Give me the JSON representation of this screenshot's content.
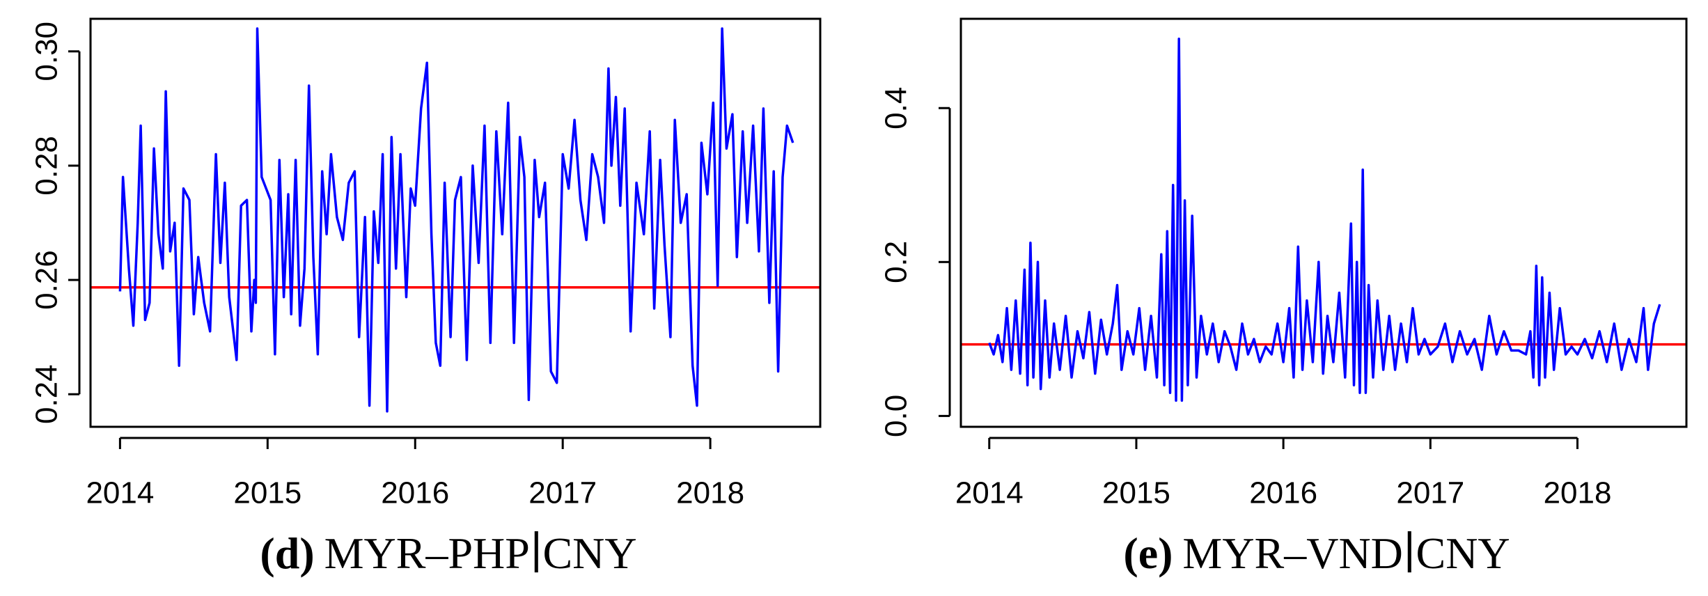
{
  "chart_data": [
    {
      "type": "line",
      "caption_label": "(d)",
      "caption_text": "MYR–PHP∣CNY",
      "xlim": [
        2013.8,
        2018.745
      ],
      "xticks": [
        2014,
        2015,
        2016,
        2017,
        2018
      ],
      "ylim": [
        0.2343,
        0.3057
      ],
      "yticks": [
        0.24,
        0.26,
        0.28,
        {
          "value": 0.3,
          "label": "0.30"
        }
      ],
      "hline": {
        "value": 0.2587,
        "color": "#ff0000"
      },
      "series": [
        {
          "color": "#0000ff",
          "x": [
            2014.0,
            2014.02,
            2014.06,
            2014.09,
            2014.12,
            2014.14,
            2014.17,
            2014.2,
            2014.23,
            2014.26,
            2014.29,
            2014.31,
            2014.34,
            2014.37,
            2014.4,
            2014.43,
            2014.47,
            2014.5,
            2014.53,
            2014.57,
            2014.61,
            2014.65,
            2014.68,
            2014.71,
            2014.74,
            2014.79,
            2014.82,
            2014.86,
            2014.89,
            2014.91,
            2014.92,
            2014.93,
            2014.96,
            2015.02,
            2015.05,
            2015.08,
            2015.11,
            2015.14,
            2015.16,
            2015.19,
            2015.22,
            2015.25,
            2015.28,
            2015.31,
            2015.34,
            2015.37,
            2015.4,
            2015.43,
            2015.47,
            2015.51,
            2015.55,
            2015.59,
            2015.62,
            2015.66,
            2015.69,
            2015.72,
            2015.75,
            2015.78,
            2015.81,
            2015.84,
            2015.87,
            2015.9,
            2015.94,
            2015.97,
            2016.0,
            2016.04,
            2016.08,
            2016.11,
            2016.14,
            2016.17,
            2016.2,
            2016.24,
            2016.27,
            2016.31,
            2016.35,
            2016.39,
            2016.43,
            2016.47,
            2016.51,
            2016.55,
            2016.59,
            2016.63,
            2016.67,
            2016.71,
            2016.74,
            2016.77,
            2016.81,
            2016.84,
            2016.88,
            2016.92,
            2016.96,
            2017.0,
            2017.04,
            2017.08,
            2017.12,
            2017.16,
            2017.2,
            2017.24,
            2017.28,
            2017.31,
            2017.33,
            2017.36,
            2017.39,
            2017.42,
            2017.46,
            2017.5,
            2017.55,
            2017.59,
            2017.62,
            2017.66,
            2017.69,
            2017.73,
            2017.76,
            2017.8,
            2017.84,
            2017.88,
            2017.91,
            2017.94,
            2017.98,
            2018.02,
            2018.05,
            2018.08,
            2018.11,
            2018.15,
            2018.18,
            2018.22,
            2018.25,
            2018.29,
            2018.33,
            2018.36,
            2018.4,
            2018.43,
            2018.46,
            2018.49,
            2018.52,
            2018.56
          ],
          "values": [
            0.258,
            0.278,
            0.262,
            0.252,
            0.27,
            0.287,
            0.253,
            0.256,
            0.283,
            0.268,
            0.262,
            0.293,
            0.265,
            0.27,
            0.245,
            0.276,
            0.274,
            0.254,
            0.264,
            0.256,
            0.251,
            0.282,
            0.263,
            0.277,
            0.257,
            0.246,
            0.273,
            0.274,
            0.251,
            0.26,
            0.256,
            0.304,
            0.278,
            0.274,
            0.247,
            0.281,
            0.257,
            0.275,
            0.254,
            0.281,
            0.252,
            0.262,
            0.294,
            0.264,
            0.247,
            0.279,
            0.268,
            0.282,
            0.271,
            0.267,
            0.277,
            0.279,
            0.25,
            0.271,
            0.238,
            0.272,
            0.263,
            0.282,
            0.237,
            0.285,
            0.262,
            0.282,
            0.257,
            0.276,
            0.273,
            0.29,
            0.298,
            0.268,
            0.249,
            0.245,
            0.277,
            0.25,
            0.274,
            0.278,
            0.246,
            0.28,
            0.263,
            0.287,
            0.249,
            0.286,
            0.268,
            0.291,
            0.249,
            0.285,
            0.278,
            0.239,
            0.281,
            0.271,
            0.277,
            0.244,
            0.242,
            0.282,
            0.276,
            0.288,
            0.274,
            0.267,
            0.282,
            0.278,
            0.27,
            0.297,
            0.28,
            0.292,
            0.273,
            0.29,
            0.251,
            0.277,
            0.268,
            0.286,
            0.255,
            0.281,
            0.266,
            0.25,
            0.288,
            0.27,
            0.275,
            0.245,
            0.238,
            0.284,
            0.275,
            0.291,
            0.259,
            0.304,
            0.283,
            0.289,
            0.264,
            0.286,
            0.27,
            0.287,
            0.265,
            0.29,
            0.256,
            0.279,
            0.244,
            0.278,
            0.287,
            0.284
          ]
        }
      ]
    },
    {
      "type": "line",
      "caption_label": "(e)",
      "caption_text": "MYR–VND∣CNY",
      "xlim": [
        2013.807,
        2018.741
      ],
      "xticks": [
        2014,
        2015,
        2016,
        2017,
        2018
      ],
      "ylim": [
        -0.0141,
        0.516
      ],
      "yticks": [
        {
          "value": 0,
          "label": "0.0"
        },
        0.2,
        0.4
      ],
      "hline": {
        "value": 0.093,
        "color": "#ff0000"
      },
      "series": [
        {
          "color": "#0000ff",
          "x": [
            2014.0,
            2014.03,
            2014.06,
            2014.09,
            2014.12,
            2014.15,
            2014.18,
            2014.21,
            2014.24,
            2014.26,
            2014.28,
            2014.3,
            2014.33,
            2014.35,
            2014.38,
            2014.41,
            2014.44,
            2014.48,
            2014.52,
            2014.56,
            2014.6,
            2014.64,
            2014.68,
            2014.72,
            2014.76,
            2014.8,
            2014.84,
            2014.87,
            2014.9,
            2014.94,
            2014.98,
            2015.02,
            2015.06,
            2015.1,
            2015.14,
            2015.17,
            2015.19,
            2015.21,
            2015.23,
            2015.25,
            2015.27,
            2015.29,
            2015.31,
            2015.33,
            2015.35,
            2015.38,
            2015.41,
            2015.44,
            2015.48,
            2015.52,
            2015.56,
            2015.6,
            2015.64,
            2015.68,
            2015.72,
            2015.76,
            2015.8,
            2015.84,
            2015.88,
            2015.92,
            2015.96,
            2016.0,
            2016.04,
            2016.07,
            2016.1,
            2016.13,
            2016.16,
            2016.2,
            2016.24,
            2016.27,
            2016.3,
            2016.34,
            2016.38,
            2016.42,
            2016.46,
            2016.48,
            2016.5,
            2016.52,
            2016.54,
            2016.56,
            2016.58,
            2016.61,
            2016.64,
            2016.68,
            2016.72,
            2016.76,
            2016.8,
            2016.84,
            2016.88,
            2016.92,
            2016.96,
            2017.0,
            2017.05,
            2017.1,
            2017.15,
            2017.2,
            2017.25,
            2017.3,
            2017.35,
            2017.4,
            2017.45,
            2017.5,
            2017.55,
            2017.6,
            2017.65,
            2017.68,
            2017.7,
            2017.72,
            2017.74,
            2017.76,
            2017.78,
            2017.81,
            2017.84,
            2017.88,
            2017.92,
            2017.96,
            2018.0,
            2018.05,
            2018.1,
            2018.15,
            2018.2,
            2018.25,
            2018.3,
            2018.35,
            2018.4,
            2018.45,
            2018.48,
            2018.52,
            2018.56
          ],
          "values": [
            0.095,
            0.08,
            0.105,
            0.07,
            0.14,
            0.06,
            0.15,
            0.055,
            0.19,
            0.04,
            0.225,
            0.05,
            0.2,
            0.035,
            0.15,
            0.05,
            0.12,
            0.06,
            0.13,
            0.05,
            0.11,
            0.075,
            0.135,
            0.055,
            0.125,
            0.08,
            0.12,
            0.17,
            0.06,
            0.11,
            0.08,
            0.14,
            0.06,
            0.13,
            0.05,
            0.21,
            0.04,
            0.24,
            0.03,
            0.3,
            0.02,
            0.49,
            0.02,
            0.28,
            0.04,
            0.26,
            0.05,
            0.13,
            0.08,
            0.12,
            0.07,
            0.11,
            0.09,
            0.06,
            0.12,
            0.08,
            0.1,
            0.07,
            0.09,
            0.08,
            0.12,
            0.07,
            0.14,
            0.05,
            0.22,
            0.06,
            0.15,
            0.07,
            0.2,
            0.055,
            0.13,
            0.07,
            0.16,
            0.05,
            0.25,
            0.04,
            0.2,
            0.03,
            0.32,
            0.03,
            0.17,
            0.05,
            0.15,
            0.06,
            0.13,
            0.06,
            0.12,
            0.07,
            0.14,
            0.08,
            0.1,
            0.08,
            0.09,
            0.12,
            0.07,
            0.11,
            0.08,
            0.1,
            0.06,
            0.13,
            0.08,
            0.11,
            0.085,
            0.085,
            0.08,
            0.11,
            0.05,
            0.195,
            0.04,
            0.18,
            0.05,
            0.16,
            0.06,
            0.14,
            0.08,
            0.09,
            0.08,
            0.1,
            0.075,
            0.11,
            0.07,
            0.12,
            0.06,
            0.1,
            0.07,
            0.14,
            0.06,
            0.12,
            0.145
          ]
        }
      ]
    }
  ]
}
